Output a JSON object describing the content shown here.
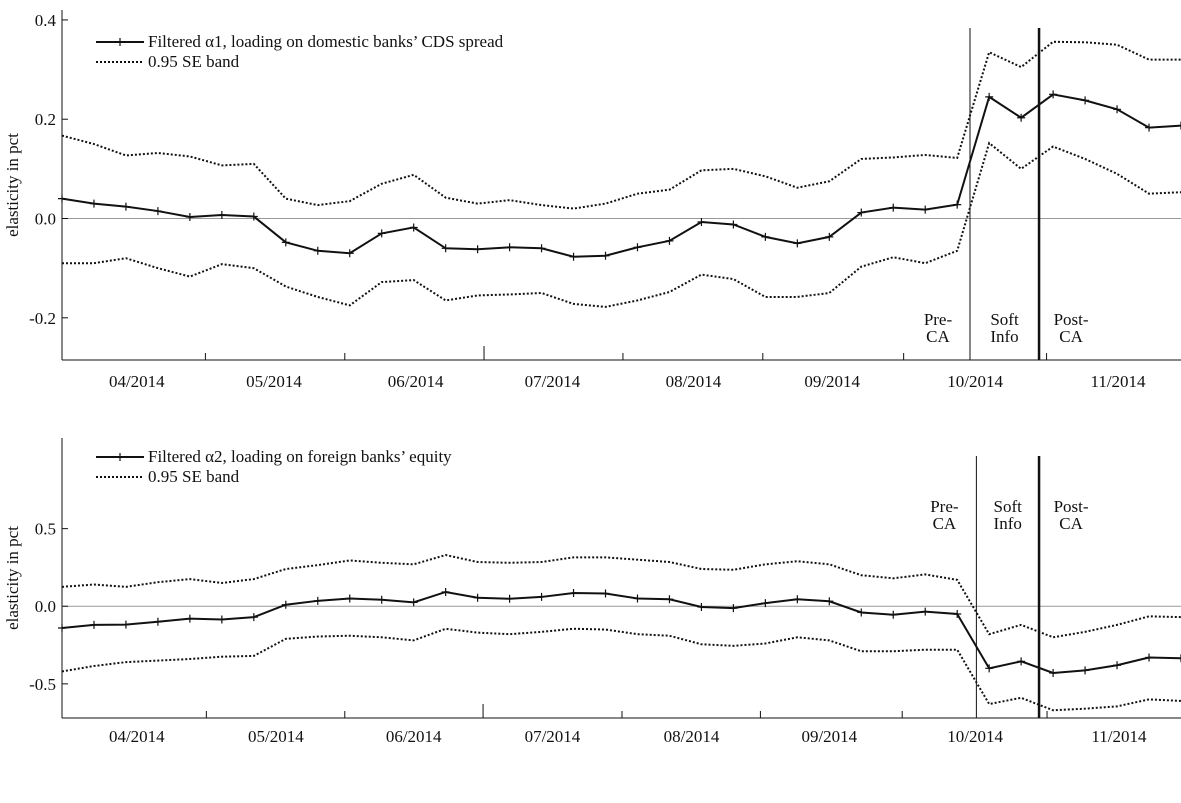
{
  "chart_data": [
    {
      "type": "line",
      "ylabel": "elasticity in pct",
      "ylim": [
        -0.285,
        0.42
      ],
      "yticks": [
        {
          "value": 0.4,
          "label": "0.4"
        },
        {
          "value": 0.2,
          "label": "0.2"
        },
        {
          "value": 0,
          "label": "0.0"
        },
        {
          "value": -0.2,
          "label": "-0.2"
        }
      ],
      "xlim": [
        0,
        35
      ],
      "xticks": [
        {
          "value": 2.34,
          "label": "04/2014"
        },
        {
          "value": 6.63,
          "label": "05/2014"
        },
        {
          "value": 11.06,
          "label": "06/2014"
        },
        {
          "value": 15.34,
          "label": "07/2014"
        },
        {
          "value": 19.75,
          "label": "08/2014"
        },
        {
          "value": 24.09,
          "label": "09/2014"
        },
        {
          "value": 28.56,
          "label": "10/2014"
        },
        {
          "value": 33.03,
          "label": "11/2014"
        }
      ],
      "series": [
        {
          "name": "Filtered α1, loading on domestic banks’ CDS spread",
          "color": "#111111",
          "values": [
            0.04,
            0.03,
            0.024,
            0.015,
            0.003,
            0.007,
            0.004,
            -0.048,
            -0.065,
            -0.07,
            -0.03,
            -0.018,
            -0.06,
            -0.062,
            -0.058,
            -0.06,
            -0.077,
            -0.075,
            -0.058,
            -0.045,
            -0.007,
            -0.012,
            -0.037,
            -0.05,
            -0.037,
            0.012,
            0.022,
            0.018,
            0.028,
            0.245,
            0.203,
            0.25,
            0.238,
            0.22,
            0.183,
            0.187
          ]
        }
      ],
      "band": {
        "name": "0.95 SE band",
        "color": "#111111",
        "upper": [
          0.167,
          0.15,
          0.127,
          0.132,
          0.125,
          0.107,
          0.11,
          0.04,
          0.027,
          0.035,
          0.07,
          0.088,
          0.042,
          0.03,
          0.037,
          0.027,
          0.02,
          0.03,
          0.05,
          0.058,
          0.097,
          0.1,
          0.085,
          0.062,
          0.075,
          0.12,
          0.123,
          0.128,
          0.122,
          0.335,
          0.305,
          0.356,
          0.355,
          0.35,
          0.32,
          0.32
        ],
        "lower": [
          -0.09,
          -0.09,
          -0.08,
          -0.1,
          -0.117,
          -0.092,
          -0.1,
          -0.137,
          -0.158,
          -0.175,
          -0.128,
          -0.124,
          -0.165,
          -0.155,
          -0.153,
          -0.15,
          -0.172,
          -0.178,
          -0.165,
          -0.148,
          -0.113,
          -0.122,
          -0.158,
          -0.158,
          -0.15,
          -0.097,
          -0.078,
          -0.09,
          -0.065,
          0.152,
          0.1,
          0.145,
          0.12,
          0.09,
          0.05,
          0.053
        ]
      },
      "events": [
        {
          "value": 28.4,
          "width": 1
        },
        {
          "value": 30.56,
          "width": 2.5
        }
      ],
      "annotations": [
        [
          "Pre-",
          "CA"
        ],
        [
          "Soft",
          "Info"
        ],
        [
          "Post-",
          "CA"
        ]
      ]
    },
    {
      "type": "line",
      "ylabel": "elasticity in pct",
      "ylim": [
        -0.72,
        1.084
      ],
      "yticks": [
        {
          "value": 0.5,
          "label": "0.5"
        },
        {
          "value": 0,
          "label": "0.0"
        },
        {
          "value": -0.5,
          "label": "-0.5"
        }
      ],
      "xlim": [
        0,
        35
      ],
      "xticks": [
        {
          "value": 2.34,
          "label": "04/2014"
        },
        {
          "value": 6.69,
          "label": "05/2014"
        },
        {
          "value": 11,
          "label": "06/2014"
        },
        {
          "value": 15.34,
          "label": "07/2014"
        },
        {
          "value": 19.69,
          "label": "08/2014"
        },
        {
          "value": 24,
          "label": "09/2014"
        },
        {
          "value": 28.56,
          "label": "10/2014"
        },
        {
          "value": 33.06,
          "label": "11/2014"
        }
      ],
      "series": [
        {
          "name": "Filtered α2, loading on foreign banks’ equity",
          "color": "#111111",
          "values": [
            -0.14,
            -0.12,
            -0.118,
            -0.1,
            -0.08,
            -0.085,
            -0.07,
            0.01,
            0.035,
            0.05,
            0.042,
            0.025,
            0.092,
            0.055,
            0.048,
            0.06,
            0.085,
            0.082,
            0.05,
            0.045,
            -0.005,
            -0.012,
            0.02,
            0.045,
            0.032,
            -0.04,
            -0.055,
            -0.035,
            -0.05,
            -0.4,
            -0.355,
            -0.43,
            -0.413,
            -0.38,
            -0.33,
            -0.335
          ]
        }
      ],
      "band": {
        "name": "0.95 SE band",
        "color": "#111111",
        "upper": [
          0.125,
          0.14,
          0.125,
          0.155,
          0.175,
          0.15,
          0.175,
          0.24,
          0.265,
          0.295,
          0.28,
          0.27,
          0.33,
          0.285,
          0.28,
          0.285,
          0.315,
          0.315,
          0.3,
          0.285,
          0.24,
          0.235,
          0.27,
          0.29,
          0.27,
          0.2,
          0.18,
          0.205,
          0.17,
          -0.18,
          -0.12,
          -0.2,
          -0.165,
          -0.12,
          -0.065,
          -0.07
        ],
        "lower": [
          -0.42,
          -0.385,
          -0.36,
          -0.35,
          -0.34,
          -0.325,
          -0.32,
          -0.21,
          -0.195,
          -0.19,
          -0.2,
          -0.22,
          -0.145,
          -0.17,
          -0.18,
          -0.165,
          -0.145,
          -0.15,
          -0.18,
          -0.19,
          -0.245,
          -0.255,
          -0.24,
          -0.2,
          -0.22,
          -0.29,
          -0.29,
          -0.28,
          -0.28,
          -0.63,
          -0.59,
          -0.67,
          -0.66,
          -0.645,
          -0.6,
          -0.61
        ]
      },
      "events": [
        {
          "value": 28.6,
          "width": 1
        },
        {
          "value": 30.56,
          "width": 2.5
        }
      ],
      "annotations": [
        [
          "Pre-",
          "CA"
        ],
        [
          "Soft",
          "Info"
        ],
        [
          "Post-",
          "CA"
        ]
      ]
    }
  ]
}
